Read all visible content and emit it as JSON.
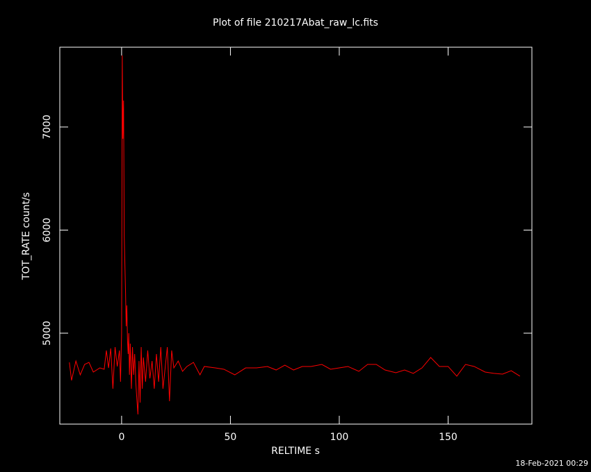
{
  "chart_data": {
    "type": "line",
    "title": "Plot of file 210217Abat_raw_lc.fits",
    "x_label": "RELTIME  s",
    "y_label": "TOT_RATE  count/s",
    "timestamp": "18-Feb-2021 00:29",
    "xlim": [
      -28.4,
      188.5
    ],
    "ylim": [
      4118,
      7774
    ],
    "xticks": [
      0,
      50,
      100,
      150
    ],
    "yticks": [
      5000,
      6000,
      7000
    ],
    "x": [
      -24,
      -23,
      -21,
      -19,
      -17,
      -15,
      -13,
      -10,
      -8,
      -7,
      -6,
      -5,
      -4,
      -3,
      -2,
      -1,
      -0.5,
      0,
      0.3,
      0.6,
      0.9,
      1.2,
      1.5,
      1.8,
      2.1,
      2.4,
      2.7,
      3,
      3.3,
      3.6,
      4,
      4.5,
      5,
      5.5,
      6,
      6.5,
      7,
      7.5,
      8,
      8.5,
      9,
      9.5,
      10,
      11,
      12,
      13,
      14,
      15,
      16,
      17,
      18,
      19,
      20,
      21,
      22,
      23,
      24,
      26,
      28,
      30,
      33,
      36,
      38,
      43,
      47,
      52,
      57,
      62,
      67,
      71,
      75,
      79,
      83,
      87,
      92,
      96,
      100,
      104,
      109,
      113,
      117,
      121,
      126,
      130,
      134,
      138,
      142,
      146,
      150,
      154,
      158,
      162,
      167,
      171,
      175,
      179,
      183
    ],
    "series": [
      {
        "name": "TOT_RATE",
        "color": "#ff0000",
        "values": [
          4717,
          4542,
          4730,
          4596,
          4697,
          4717,
          4623,
          4663,
          4650,
          4832,
          4663,
          4852,
          4461,
          4865,
          4677,
          4832,
          4529,
          5000,
          7694,
          6886,
          7256,
          5943,
          5673,
          5404,
          5067,
          5269,
          4933,
          4798,
          5000,
          4596,
          4899,
          4461,
          4865,
          4596,
          4798,
          4529,
          4360,
          4212,
          4730,
          4327,
          4865,
          4461,
          4764,
          4529,
          4832,
          4562,
          4730,
          4461,
          4798,
          4529,
          4865,
          4461,
          4663,
          4865,
          4340,
          4832,
          4663,
          4730,
          4630,
          4677,
          4717,
          4596,
          4677,
          4663,
          4650,
          4596,
          4663,
          4663,
          4677,
          4643,
          4690,
          4643,
          4677,
          4677,
          4697,
          4650,
          4663,
          4677,
          4630,
          4697,
          4697,
          4643,
          4616,
          4643,
          4610,
          4663,
          4764,
          4677,
          4677,
          4583,
          4697,
          4677,
          4623,
          4610,
          4603,
          4636,
          4583
        ]
      }
    ]
  }
}
